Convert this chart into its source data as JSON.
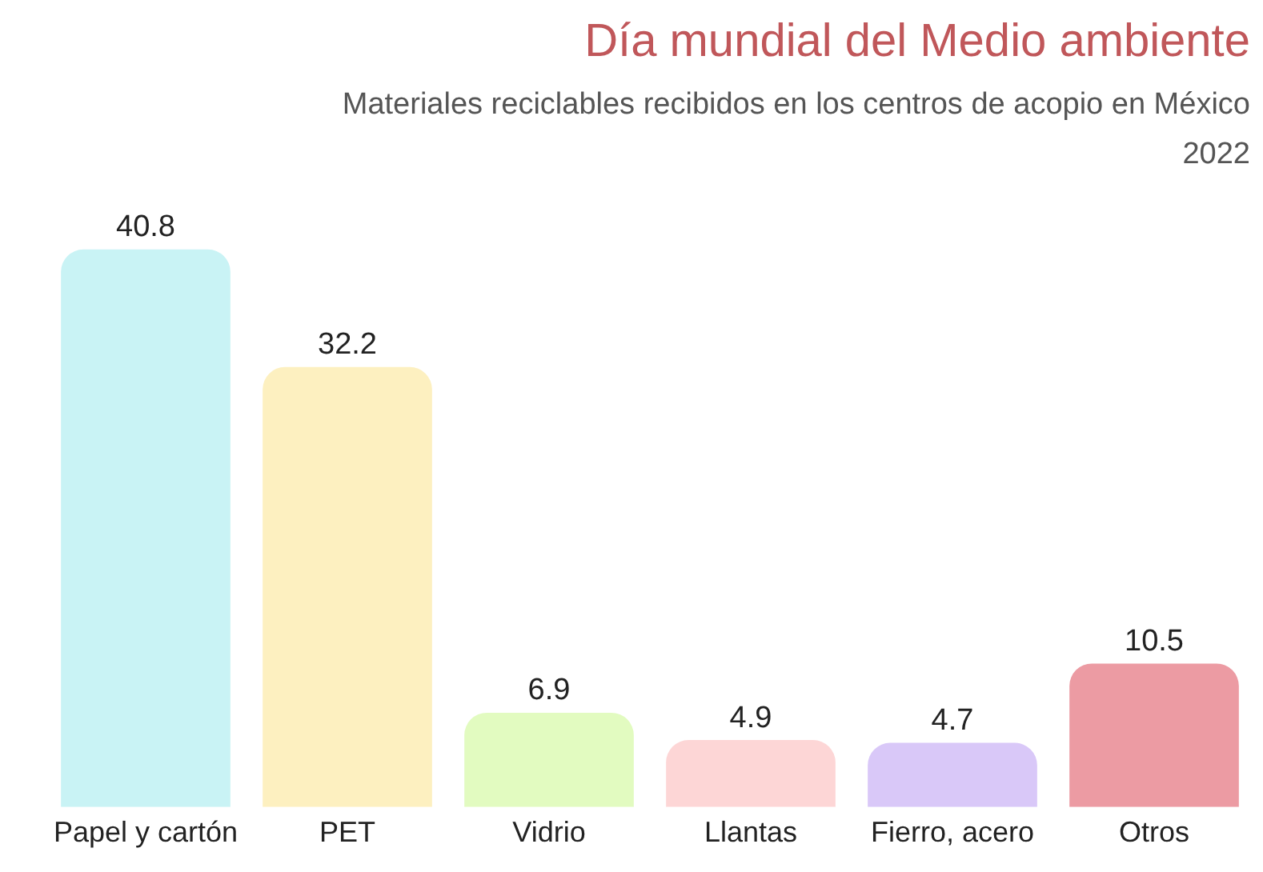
{
  "chart_data": {
    "type": "bar",
    "title": "Día mundial del Medio ambiente",
    "subtitle": "Materiales reciclables recibidos en los centros de acopio en México",
    "annotations": [
      "2022"
    ],
    "categories": [
      "Papel y cartón",
      "PET",
      "Vidrio",
      "Llantas",
      "Fierro, acero",
      "Otros"
    ],
    "values": [
      40.8,
      32.2,
      6.9,
      4.9,
      4.7,
      10.5
    ],
    "colors": [
      "#c9f3f5",
      "#fdf0c0",
      "#e2fbc0",
      "#fdd6d6",
      "#d9c8f8",
      "#ec9ba3"
    ],
    "data_labels": true,
    "grid": false,
    "legend": false,
    "tick_labels": "x"
  }
}
